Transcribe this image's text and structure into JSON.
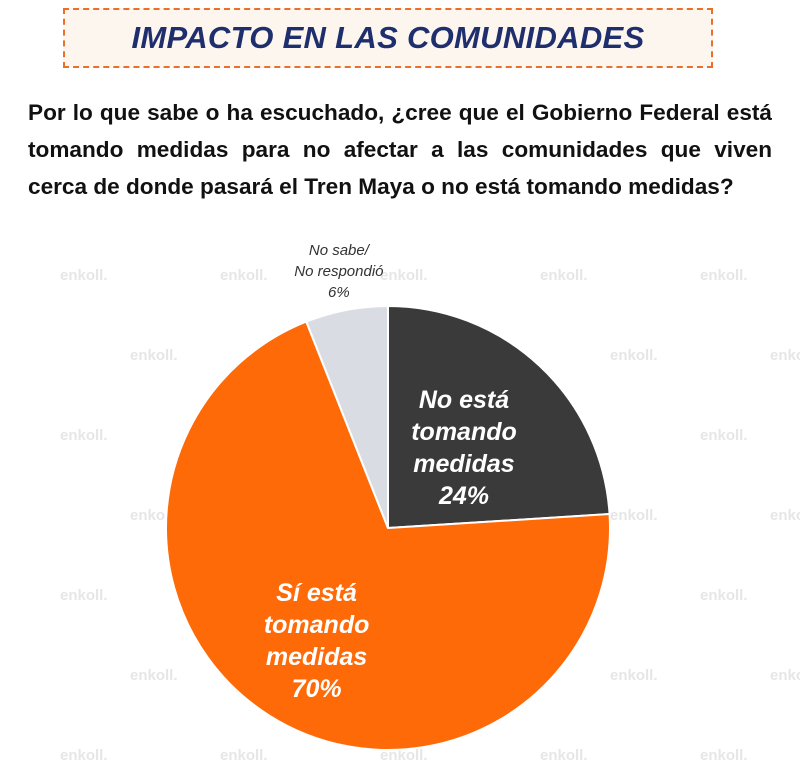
{
  "header": {
    "title": "IMPACTO EN LAS COMUNIDADES",
    "question": "Por lo que sabe o ha escuchado, ¿cree que el Gobierno Federal está tomando medidas para no afectar a las comunidades que viven cerca de donde pasará el Tren Maya o no está tomando medidas?"
  },
  "watermark": {
    "text": "enkoll."
  },
  "chart_data": {
    "type": "pie",
    "start_angle_deg": 0,
    "direction": "clockwise",
    "slices": [
      {
        "label_lines": [
          "No está",
          "tomando",
          "medidas"
        ],
        "value": 24,
        "value_label": "24%",
        "color": "#3a3a3a"
      },
      {
        "label_lines": [
          "Sí está",
          "tomando",
          "medidas"
        ],
        "value": 70,
        "value_label": "70%",
        "color": "#ff6a08"
      },
      {
        "label_lines": [
          "No sabe/",
          "No respondió"
        ],
        "value": 6,
        "value_label": "6%",
        "color": "#d9dde3"
      }
    ]
  }
}
